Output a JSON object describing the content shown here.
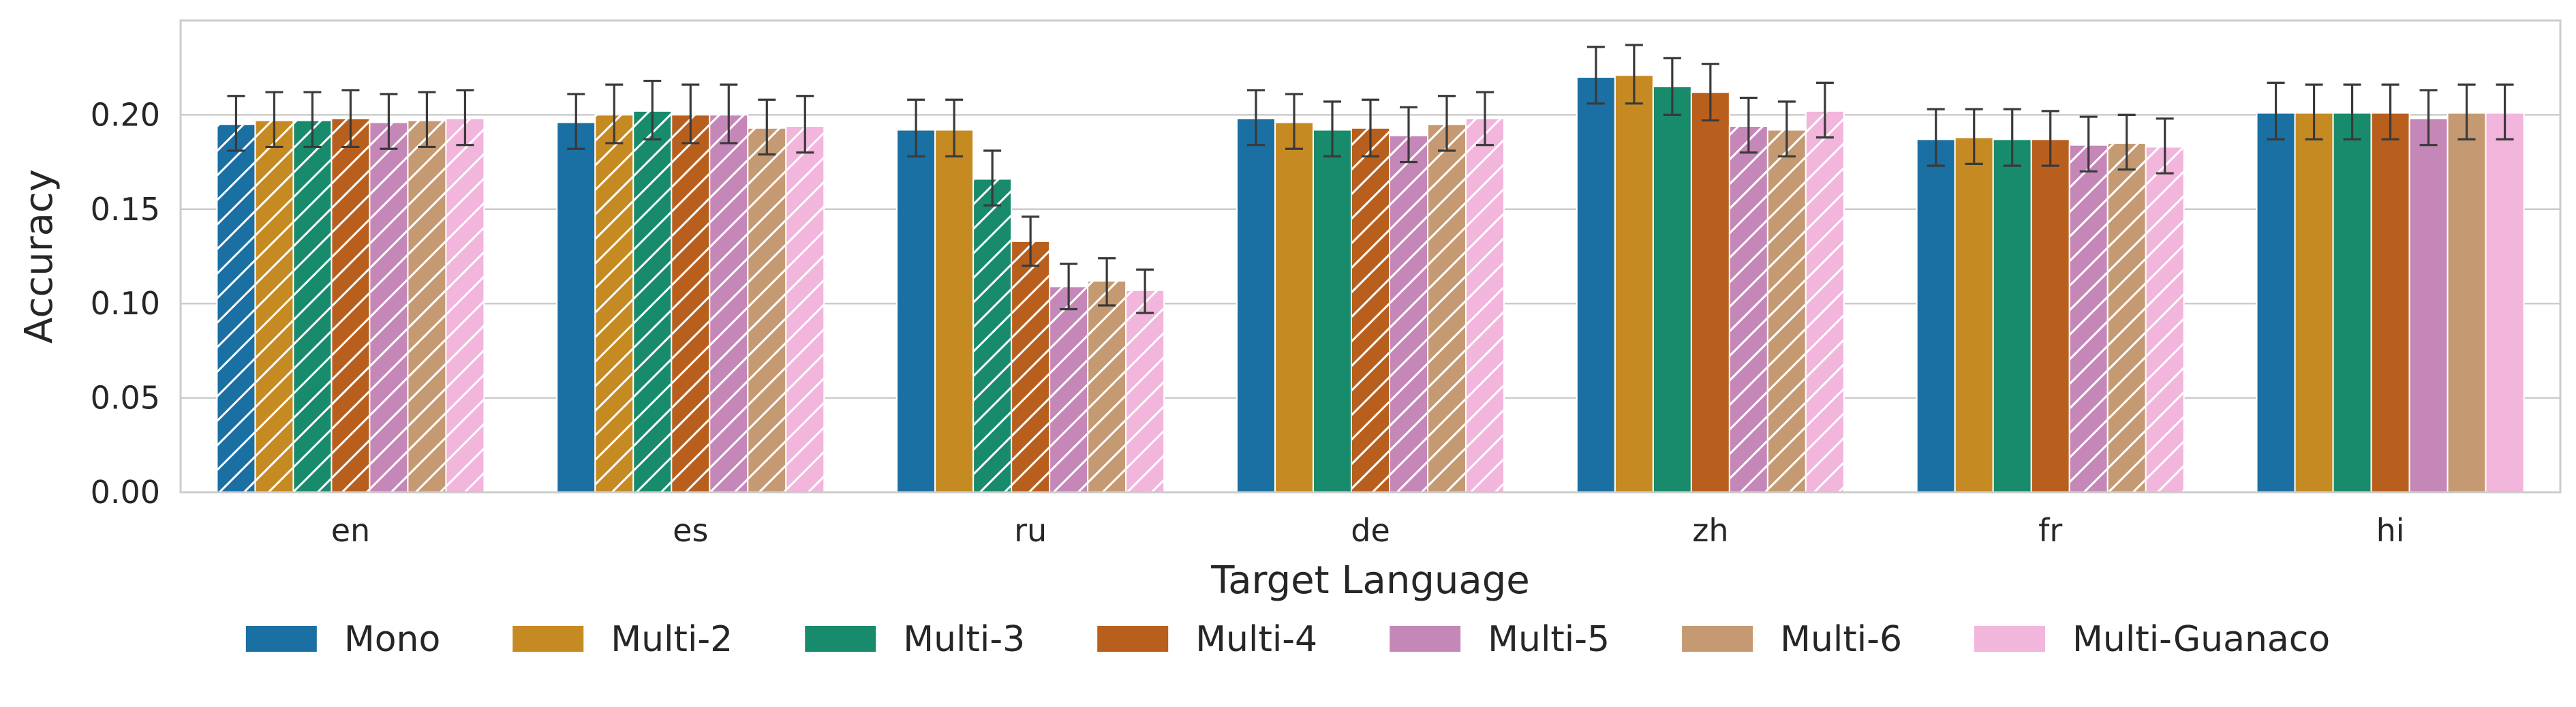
{
  "chart_data": {
    "type": "bar",
    "xlabel": "Target Language",
    "ylabel": "Accuracy",
    "ylim": [
      0,
      0.25
    ],
    "yticks": [
      0.0,
      0.05,
      0.1,
      0.15,
      0.2
    ],
    "ytick_labels": [
      "0.00",
      "0.05",
      "0.10",
      "0.15",
      "0.20"
    ],
    "grid": true,
    "legend_position": "bottom",
    "categories": [
      "en",
      "es",
      "ru",
      "de",
      "zh",
      "fr",
      "hi"
    ],
    "series": [
      {
        "name": "Mono",
        "color": "#1a6fa3",
        "values": [
          0.195,
          0.196,
          0.192,
          0.198,
          0.22,
          0.187,
          0.201
        ],
        "err_low": [
          0.181,
          0.182,
          0.178,
          0.184,
          0.206,
          0.173,
          0.187
        ],
        "err_high": [
          0.21,
          0.211,
          0.208,
          0.213,
          0.236,
          0.203,
          0.217
        ],
        "hatched": [
          true,
          false,
          false,
          false,
          false,
          false,
          false
        ]
      },
      {
        "name": "Multi-2",
        "color": "#c68a23",
        "values": [
          0.197,
          0.2,
          0.192,
          0.196,
          0.221,
          0.188,
          0.201
        ],
        "err_low": [
          0.183,
          0.185,
          0.178,
          0.182,
          0.206,
          0.174,
          0.187
        ],
        "err_high": [
          0.212,
          0.216,
          0.208,
          0.211,
          0.237,
          0.203,
          0.216
        ],
        "hatched": [
          true,
          true,
          false,
          false,
          false,
          false,
          false
        ]
      },
      {
        "name": "Multi-3",
        "color": "#178b6b",
        "values": [
          0.197,
          0.202,
          0.166,
          0.192,
          0.215,
          0.187,
          0.201
        ],
        "err_low": [
          0.183,
          0.187,
          0.152,
          0.178,
          0.2,
          0.173,
          0.187
        ],
        "err_high": [
          0.212,
          0.218,
          0.181,
          0.207,
          0.23,
          0.203,
          0.216
        ],
        "hatched": [
          true,
          true,
          true,
          false,
          false,
          false,
          false
        ]
      },
      {
        "name": "Multi-4",
        "color": "#b95f1e",
        "values": [
          0.198,
          0.2,
          0.133,
          0.193,
          0.212,
          0.187,
          0.201
        ],
        "err_low": [
          0.183,
          0.185,
          0.12,
          0.178,
          0.197,
          0.173,
          0.187
        ],
        "err_high": [
          0.213,
          0.216,
          0.146,
          0.208,
          0.227,
          0.202,
          0.216
        ],
        "hatched": [
          true,
          true,
          true,
          true,
          false,
          false,
          false
        ]
      },
      {
        "name": "Multi-5",
        "color": "#c587b8",
        "values": [
          0.196,
          0.2,
          0.109,
          0.189,
          0.194,
          0.184,
          0.198
        ],
        "err_low": [
          0.182,
          0.185,
          0.097,
          0.175,
          0.18,
          0.17,
          0.184
        ],
        "err_high": [
          0.211,
          0.216,
          0.121,
          0.204,
          0.209,
          0.199,
          0.213
        ],
        "hatched": [
          true,
          true,
          true,
          true,
          true,
          true,
          false
        ]
      },
      {
        "name": "Multi-6",
        "color": "#c59a73",
        "values": [
          0.197,
          0.193,
          0.112,
          0.195,
          0.192,
          0.185,
          0.201
        ],
        "err_low": [
          0.183,
          0.179,
          0.099,
          0.181,
          0.178,
          0.171,
          0.187
        ],
        "err_high": [
          0.212,
          0.208,
          0.124,
          0.21,
          0.207,
          0.2,
          0.216
        ],
        "hatched": [
          true,
          true,
          true,
          true,
          true,
          true,
          false
        ]
      },
      {
        "name": "Multi-Guanaco",
        "color": "#f2b5dc",
        "values": [
          0.198,
          0.194,
          0.107,
          0.198,
          0.202,
          0.183,
          0.201
        ],
        "err_low": [
          0.184,
          0.18,
          0.095,
          0.184,
          0.188,
          0.169,
          0.187
        ],
        "err_high": [
          0.213,
          0.21,
          0.118,
          0.212,
          0.217,
          0.198,
          0.216
        ],
        "hatched": [
          true,
          true,
          true,
          true,
          true,
          true,
          false
        ]
      }
    ]
  }
}
